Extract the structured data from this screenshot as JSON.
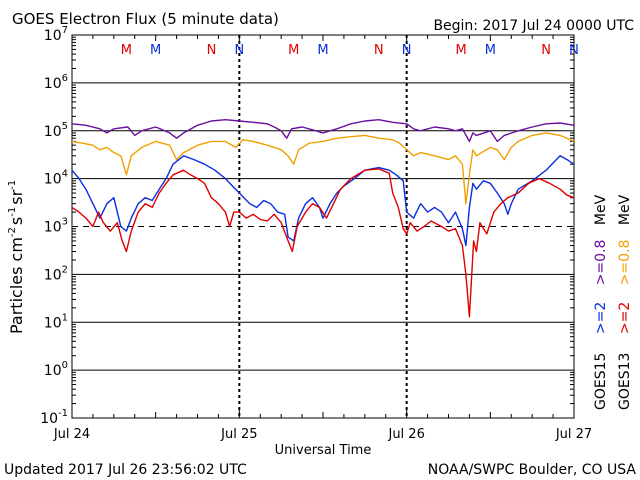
{
  "header": {
    "title": "GOES Electron Flux (5 minute data)",
    "begin": "Begin: 2017 Jul 24 0000 UTC"
  },
  "footer": {
    "updated": "Updated 2017 Jul 26 23:56:02 UTC",
    "credit": "NOAA/SWPC Boulder, CO USA"
  },
  "colors": {
    "red": "#e00000",
    "blue": "#0a2ee0",
    "purple": "#6a0fa0",
    "orange": "#f0a000",
    "threshold": "#000000"
  },
  "chart_data": {
    "type": "line",
    "title": "GOES Electron Flux (5 minute data)",
    "xlabel": "Universal Time",
    "ylabel": "Particles cm-2 s-1 sr-1",
    "ylabel_parts": {
      "base": "Particles cm",
      "e1": "-2",
      "s": "s",
      "e2": "-1",
      "sr": "sr",
      "e3": "-1"
    },
    "y_scale": "log",
    "ylim": [
      0.1,
      10000000
    ],
    "y_ticks": [
      {
        "base": "10",
        "exp": "7",
        "value": 10000000
      },
      {
        "base": "10",
        "exp": "6",
        "value": 1000000
      },
      {
        "base": "10",
        "exp": "5",
        "value": 100000
      },
      {
        "base": "10",
        "exp": "4",
        "value": 10000
      },
      {
        "base": "10",
        "exp": "3",
        "value": 1000
      },
      {
        "base": "10",
        "exp": "2",
        "value": 100
      },
      {
        "base": "10",
        "exp": "1",
        "value": 10
      },
      {
        "base": "10",
        "exp": "0",
        "value": 1
      },
      {
        "base": "10",
        "exp": "-1",
        "value": 0.1
      }
    ],
    "x_units": "hours since 2017 Jul 24 0000 UTC",
    "xlim": [
      0,
      72
    ],
    "x_ticks": [
      {
        "label": "Jul 24",
        "value": 0
      },
      {
        "label": "Jul 25",
        "value": 24
      },
      {
        "label": "Jul 26",
        "value": 48
      },
      {
        "label": "Jul 27",
        "value": 72
      }
    ],
    "threshold": 1000,
    "mn_markers": [
      {
        "label": "M",
        "x": 7.8,
        "color": "red"
      },
      {
        "label": "M",
        "x": 12.0,
        "color": "blue"
      },
      {
        "label": "N",
        "x": 20.0,
        "color": "red"
      },
      {
        "label": "N",
        "x": 24.0,
        "color": "blue"
      },
      {
        "label": "M",
        "x": 31.8,
        "color": "red"
      },
      {
        "label": "M",
        "x": 36.0,
        "color": "blue"
      },
      {
        "label": "N",
        "x": 44.0,
        "color": "red"
      },
      {
        "label": "N",
        "x": 48.0,
        "color": "blue"
      },
      {
        "label": "M",
        "x": 55.8,
        "color": "red"
      },
      {
        "label": "M",
        "x": 60.0,
        "color": "blue"
      },
      {
        "label": "N",
        "x": 68.0,
        "color": "red"
      },
      {
        "label": "N",
        "x": 72.0,
        "color": "blue"
      }
    ],
    "legend": {
      "placement": "right",
      "groups": [
        {
          "name": "GOES15",
          "items": [
            {
              "label": ">=2",
              "color": "blue"
            },
            {
              "label": ">=0.8",
              "color": "purple"
            }
          ],
          "unit": "MeV"
        },
        {
          "name": "GOES13",
          "items": [
            {
              "label": ">=2",
              "color": "red"
            },
            {
              "label": ">=0.8",
              "color": "orange"
            }
          ],
          "unit": "MeV"
        }
      ]
    },
    "series": [
      {
        "name": "GOES15 >=0.8 MeV",
        "color": "purple",
        "points": [
          [
            0,
            140000
          ],
          [
            2,
            130000
          ],
          [
            4,
            110000
          ],
          [
            5,
            90000
          ],
          [
            6,
            110000
          ],
          [
            8,
            120000
          ],
          [
            9,
            80000
          ],
          [
            10,
            100000
          ],
          [
            12,
            120000
          ],
          [
            14,
            90000
          ],
          [
            15,
            70000
          ],
          [
            16,
            90000
          ],
          [
            18,
            130000
          ],
          [
            20,
            160000
          ],
          [
            22,
            170000
          ],
          [
            24,
            160000
          ],
          [
            26,
            150000
          ],
          [
            28,
            140000
          ],
          [
            29,
            120000
          ],
          [
            30,
            100000
          ],
          [
            30.8,
            70000
          ],
          [
            31.5,
            110000
          ],
          [
            33,
            120000
          ],
          [
            35,
            100000
          ],
          [
            36,
            90000
          ],
          [
            38,
            110000
          ],
          [
            40,
            140000
          ],
          [
            42,
            160000
          ],
          [
            44,
            170000
          ],
          [
            46,
            150000
          ],
          [
            48,
            140000
          ],
          [
            49,
            110000
          ],
          [
            50,
            100000
          ],
          [
            52,
            120000
          ],
          [
            54,
            110000
          ],
          [
            55,
            100000
          ],
          [
            56,
            110000
          ],
          [
            57,
            60000
          ],
          [
            57.5,
            90000
          ],
          [
            58,
            80000
          ],
          [
            60,
            100000
          ],
          [
            61,
            60000
          ],
          [
            62,
            80000
          ],
          [
            64,
            100000
          ],
          [
            66,
            120000
          ],
          [
            68,
            140000
          ],
          [
            70,
            145000
          ],
          [
            72,
            130000
          ]
        ]
      },
      {
        "name": "GOES13 >=0.8 MeV",
        "color": "orange",
        "points": [
          [
            0,
            60000
          ],
          [
            1.5,
            55000
          ],
          [
            3,
            50000
          ],
          [
            4,
            40000
          ],
          [
            5,
            45000
          ],
          [
            6,
            35000
          ],
          [
            7,
            30000
          ],
          [
            7.8,
            12000
          ],
          [
            8.5,
            30000
          ],
          [
            10,
            45000
          ],
          [
            12,
            60000
          ],
          [
            14,
            50000
          ],
          [
            15,
            25000
          ],
          [
            16,
            35000
          ],
          [
            18,
            50000
          ],
          [
            20,
            60000
          ],
          [
            22,
            60000
          ],
          [
            23.5,
            45000
          ],
          [
            24.5,
            65000
          ],
          [
            26,
            60000
          ],
          [
            28,
            50000
          ],
          [
            29,
            45000
          ],
          [
            30,
            40000
          ],
          [
            31,
            30000
          ],
          [
            31.8,
            20000
          ],
          [
            32.5,
            40000
          ],
          [
            34,
            55000
          ],
          [
            36,
            60000
          ],
          [
            38,
            70000
          ],
          [
            40,
            75000
          ],
          [
            42,
            80000
          ],
          [
            44,
            70000
          ],
          [
            46,
            65000
          ],
          [
            47,
            55000
          ],
          [
            48,
            40000
          ],
          [
            49,
            30000
          ],
          [
            50,
            35000
          ],
          [
            52,
            30000
          ],
          [
            54,
            25000
          ],
          [
            55,
            30000
          ],
          [
            56,
            20000
          ],
          [
            56.5,
            3000
          ],
          [
            57,
            12000
          ],
          [
            57.5,
            40000
          ],
          [
            58,
            30000
          ],
          [
            60,
            45000
          ],
          [
            61,
            40000
          ],
          [
            62,
            25000
          ],
          [
            63,
            45000
          ],
          [
            64,
            60000
          ],
          [
            66,
            80000
          ],
          [
            68,
            90000
          ],
          [
            70,
            80000
          ],
          [
            72,
            60000
          ]
        ]
      },
      {
        "name": "GOES15 >=2 MeV",
        "color": "blue",
        "points": [
          [
            0,
            15000
          ],
          [
            1,
            10000
          ],
          [
            2,
            6000
          ],
          [
            3,
            3000
          ],
          [
            4,
            1500
          ],
          [
            5,
            3000
          ],
          [
            6,
            4000
          ],
          [
            6.5,
            2000
          ],
          [
            7,
            1000
          ],
          [
            7.8,
            800
          ],
          [
            8.5,
            1500
          ],
          [
            9.5,
            3000
          ],
          [
            10.5,
            4000
          ],
          [
            11.5,
            3500
          ],
          [
            12.5,
            6000
          ],
          [
            13.5,
            10000
          ],
          [
            14.5,
            20000
          ],
          [
            16,
            30000
          ],
          [
            17.5,
            25000
          ],
          [
            19,
            20000
          ],
          [
            20.5,
            15000
          ],
          [
            22,
            10000
          ],
          [
            23,
            7000
          ],
          [
            24,
            5000
          ],
          [
            25.5,
            3000
          ],
          [
            26.5,
            2500
          ],
          [
            27.5,
            3500
          ],
          [
            28.5,
            3000
          ],
          [
            29.5,
            2000
          ],
          [
            30.5,
            1800
          ],
          [
            31,
            600
          ],
          [
            31.8,
            500
          ],
          [
            32.5,
            1500
          ],
          [
            33.5,
            3000
          ],
          [
            34.5,
            4000
          ],
          [
            35.5,
            2500
          ],
          [
            36,
            1500
          ],
          [
            37,
            3000
          ],
          [
            38,
            5000
          ],
          [
            39,
            7000
          ],
          [
            40.5,
            10000
          ],
          [
            42,
            15000
          ],
          [
            44,
            17000
          ],
          [
            45.5,
            15000
          ],
          [
            46.5,
            12000
          ],
          [
            47.5,
            9000
          ],
          [
            48,
            2000
          ],
          [
            49,
            1500
          ],
          [
            50,
            3000
          ],
          [
            51,
            2000
          ],
          [
            52,
            2500
          ],
          [
            53,
            2000
          ],
          [
            54,
            1200
          ],
          [
            55,
            2000
          ],
          [
            56,
            900
          ],
          [
            56.5,
            400
          ],
          [
            57,
            2500
          ],
          [
            57.5,
            8000
          ],
          [
            58,
            6000
          ],
          [
            59,
            9000
          ],
          [
            60,
            8000
          ],
          [
            61,
            5000
          ],
          [
            62,
            3000
          ],
          [
            62.5,
            1800
          ],
          [
            63,
            3000
          ],
          [
            64,
            6000
          ],
          [
            66,
            9000
          ],
          [
            68,
            15000
          ],
          [
            70,
            30000
          ],
          [
            71,
            25000
          ],
          [
            72,
            20000
          ]
        ]
      },
      {
        "name": "GOES13 >=2 MeV",
        "color": "red",
        "points": [
          [
            0,
            2500
          ],
          [
            1,
            2000
          ],
          [
            2,
            1500
          ],
          [
            3,
            1000
          ],
          [
            3.8,
            2000
          ],
          [
            4.5,
            1200
          ],
          [
            5.5,
            800
          ],
          [
            6.5,
            1200
          ],
          [
            7.2,
            500
          ],
          [
            7.8,
            300
          ],
          [
            8.5,
            800
          ],
          [
            9.5,
            2000
          ],
          [
            10.5,
            3000
          ],
          [
            11.5,
            2500
          ],
          [
            12.5,
            5000
          ],
          [
            13.5,
            8000
          ],
          [
            14.5,
            12000
          ],
          [
            16,
            15000
          ],
          [
            17,
            12000
          ],
          [
            18,
            10000
          ],
          [
            19,
            8000
          ],
          [
            20,
            4000
          ],
          [
            21,
            3000
          ],
          [
            22,
            2000
          ],
          [
            22.6,
            1000
          ],
          [
            23.2,
            2000
          ],
          [
            24,
            2000
          ],
          [
            25,
            1500
          ],
          [
            26,
            1800
          ],
          [
            27,
            1400
          ],
          [
            28,
            1300
          ],
          [
            29,
            1800
          ],
          [
            30,
            1200
          ],
          [
            31,
            500
          ],
          [
            31.6,
            300
          ],
          [
            32.3,
            1000
          ],
          [
            33.5,
            2000
          ],
          [
            34.5,
            3000
          ],
          [
            35.5,
            2500
          ],
          [
            36.5,
            1500
          ],
          [
            37.5,
            3000
          ],
          [
            38.5,
            6000
          ],
          [
            40,
            10000
          ],
          [
            42,
            15000
          ],
          [
            44,
            16000
          ],
          [
            45.5,
            13000
          ],
          [
            46,
            5000
          ],
          [
            46.8,
            2500
          ],
          [
            47.5,
            900
          ],
          [
            48,
            700
          ],
          [
            48.5,
            1200
          ],
          [
            49.5,
            800
          ],
          [
            50.5,
            1000
          ],
          [
            51.5,
            1300
          ],
          [
            53,
            1000
          ],
          [
            54,
            800
          ],
          [
            55,
            900
          ],
          [
            55.5,
            600
          ],
          [
            56,
            400
          ],
          [
            56.5,
            100
          ],
          [
            56.8,
            30
          ],
          [
            57,
            13
          ],
          [
            57.3,
            80
          ],
          [
            57.6,
            500
          ],
          [
            58,
            300
          ],
          [
            58.5,
            1200
          ],
          [
            59.5,
            700
          ],
          [
            60.5,
            2000
          ],
          [
            61.5,
            3000
          ],
          [
            62.5,
            4000
          ],
          [
            64,
            5000
          ],
          [
            65.5,
            8000
          ],
          [
            67,
            10000
          ],
          [
            68.5,
            8000
          ],
          [
            70,
            6000
          ],
          [
            71,
            4500
          ],
          [
            72,
            4000
          ]
        ]
      }
    ]
  }
}
